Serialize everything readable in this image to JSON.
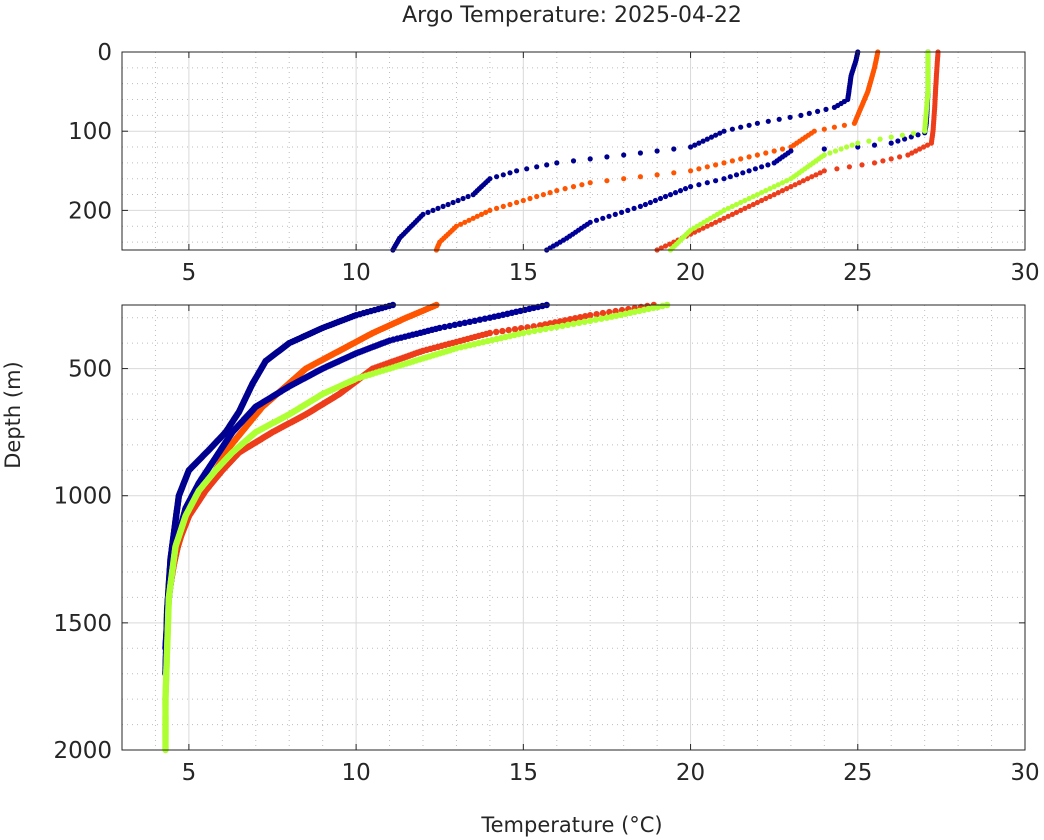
{
  "title": "Argo Temperature: 2025-04-22",
  "xlabel": "Temperature (°C)",
  "ylabel": "Depth (m)",
  "colors": {
    "profile_1": "#00008f",
    "profile_2": "#ff5400",
    "profile_3": "#000099",
    "profile_4": "#ee3d1a",
    "profile_5": "#aeff33"
  },
  "chart_data": [
    {
      "type": "scatter",
      "panel": "upper",
      "xlim": [
        3,
        30
      ],
      "ylim": [
        0,
        250
      ],
      "y_reversed": true,
      "grid": true,
      "xticks": [
        5,
        10,
        15,
        20,
        25,
        30
      ],
      "xtick_labels": [
        "5",
        "10",
        "15",
        "20",
        "25",
        "30"
      ],
      "yticks": [
        0,
        100,
        200
      ],
      "ytick_labels": [
        "0",
        "100",
        "200"
      ],
      "series": [
        {
          "name": "profile_1",
          "color": "#00008f",
          "temp": [
            25.0,
            24.95,
            24.8,
            24.7,
            24.3,
            23.3,
            22.0,
            21.0,
            20.0,
            19.0,
            16.0,
            14.8,
            14.0,
            13.5,
            12.0,
            11.3,
            11.1
          ],
          "depth": [
            0,
            10,
            30,
            60,
            70,
            80,
            90,
            100,
            120,
            125,
            140,
            150,
            160,
            180,
            205,
            235,
            250
          ]
        },
        {
          "name": "profile_2",
          "color": "#ff5400",
          "temp": [
            25.6,
            25.5,
            25.3,
            25.1,
            24.9,
            23.7,
            23.0,
            20.0,
            17.0,
            16.0,
            14.0,
            13.0,
            12.5,
            12.4
          ],
          "depth": [
            0,
            20,
            50,
            70,
            90,
            100,
            120,
            150,
            165,
            175,
            200,
            220,
            240,
            250
          ]
        },
        {
          "name": "profile_3",
          "color": "#000099",
          "temp": [
            27.1,
            27.1,
            27.05,
            27.0,
            26.0,
            25.0,
            23.0,
            22.5,
            21.0,
            20.0,
            18.5,
            17.0,
            16.3,
            15.7
          ],
          "depth": [
            0,
            50,
            90,
            102,
            115,
            120,
            125,
            140,
            160,
            170,
            195,
            215,
            235,
            250
          ]
        },
        {
          "name": "profile_4",
          "color": "#ee3d1a",
          "temp": [
            27.4,
            27.35,
            27.3,
            27.25,
            27.2,
            26.5,
            25.5,
            24.0,
            23.0,
            22.0,
            21.0,
            20.0,
            19.0
          ],
          "depth": [
            0,
            30,
            70,
            100,
            115,
            130,
            140,
            150,
            170,
            190,
            210,
            230,
            250
          ]
        },
        {
          "name": "profile_5",
          "color": "#aeff33",
          "temp": [
            27.1,
            27.1,
            27.0,
            25.0,
            24.0,
            23.0,
            22.0,
            21.0,
            20.0,
            19.4
          ],
          "depth": [
            0,
            50,
            100,
            115,
            130,
            160,
            180,
            200,
            225,
            250
          ]
        }
      ]
    },
    {
      "type": "scatter",
      "panel": "lower",
      "xlim": [
        3,
        30
      ],
      "ylim": [
        250,
        2000
      ],
      "y_reversed": true,
      "grid": true,
      "xticks": [
        5,
        10,
        15,
        20,
        25,
        30
      ],
      "xtick_labels": [
        "5",
        "10",
        "15",
        "20",
        "25",
        "30"
      ],
      "yticks": [
        500,
        1000,
        1500,
        2000
      ],
      "ytick_labels": [
        "500",
        "1000",
        "1500",
        "2000"
      ],
      "series": [
        {
          "name": "profile_1",
          "color": "#00008f",
          "temp": [
            11.1,
            10.0,
            9.0,
            8.0,
            7.3,
            6.9,
            6.5,
            6.1,
            5.6,
            5.0,
            4.7,
            4.6,
            4.45,
            4.35,
            4.3
          ],
          "depth": [
            250,
            290,
            340,
            400,
            470,
            560,
            670,
            750,
            820,
            900,
            1000,
            1100,
            1250,
            1450,
            1700
          ]
        },
        {
          "name": "profile_2",
          "color": "#ff5400",
          "temp": [
            12.4,
            11.5,
            10.5,
            9.5,
            8.5,
            7.9,
            7.2,
            6.7,
            6.2,
            5.8,
            5.3,
            4.9,
            4.6,
            4.45
          ],
          "depth": [
            250,
            300,
            360,
            430,
            500,
            570,
            650,
            730,
            810,
            900,
            1000,
            1100,
            1230,
            1350
          ]
        },
        {
          "name": "profile_3",
          "color": "#000099",
          "temp": [
            15.7,
            14.0,
            12.5,
            11.0,
            10.0,
            9.0,
            8.0,
            7.0,
            6.3,
            5.8,
            5.3,
            4.9,
            4.6,
            4.4,
            4.3
          ],
          "depth": [
            250,
            300,
            340,
            390,
            440,
            500,
            570,
            650,
            750,
            850,
            950,
            1050,
            1200,
            1400,
            1600
          ]
        },
        {
          "name": "profile_4",
          "color": "#ee3d1a",
          "temp": [
            18.9,
            17.0,
            15.5,
            14.0,
            12.0,
            10.5,
            9.5,
            8.5,
            7.5,
            6.5,
            6.0,
            5.5,
            5.0,
            4.7,
            4.5
          ],
          "depth": [
            250,
            290,
            330,
            360,
            430,
            500,
            600,
            680,
            750,
            830,
            900,
            980,
            1080,
            1180,
            1300
          ]
        },
        {
          "name": "profile_5",
          "color": "#aeff33",
          "temp": [
            19.3,
            17.5,
            15.0,
            13.0,
            11.5,
            10.0,
            9.0,
            8.0,
            7.0,
            6.3,
            5.8,
            5.3,
            4.9,
            4.6,
            4.4,
            4.35,
            4.3,
            4.3
          ],
          "depth": [
            250,
            300,
            360,
            420,
            480,
            540,
            600,
            680,
            750,
            830,
            900,
            980,
            1080,
            1200,
            1400,
            1600,
            1800,
            2000
          ]
        }
      ]
    }
  ]
}
